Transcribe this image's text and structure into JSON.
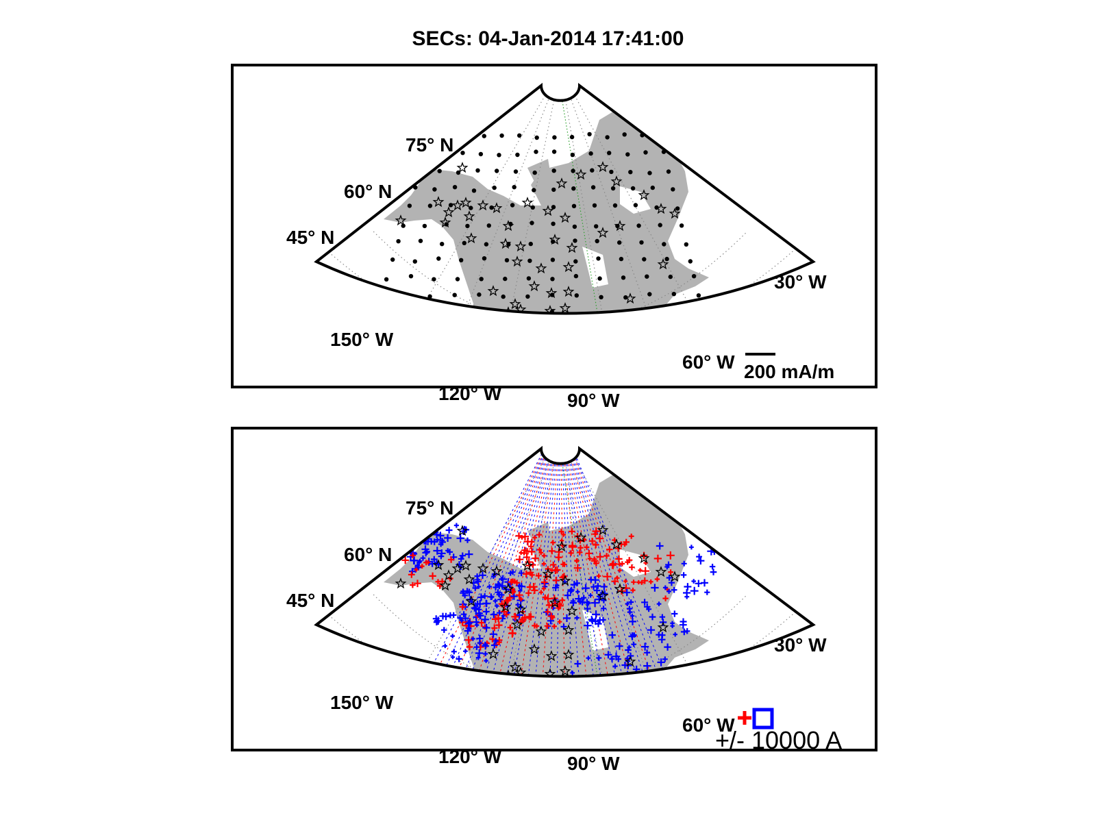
{
  "title": "SECs: 04-Jan-2014 17:41:00",
  "colors": {
    "land": "#b3b3b3",
    "positive": "#ff0000",
    "negative": "#0000ff",
    "central_meridian": "#2ca02c"
  },
  "panels": [
    {
      "id": "equivalent-currents",
      "lat_labels": [
        "75° N",
        "60° N",
        "45° N"
      ],
      "lon_labels": [
        "150° W",
        "120° W",
        "90° W",
        "60° W",
        "30° W"
      ],
      "scale_label": "200 mA/m"
    },
    {
      "id": "sec-amplitudes",
      "lat_labels": [
        "75° N",
        "60° N",
        "45° N"
      ],
      "lon_labels": [
        "150° W",
        "120° W",
        "90° W",
        "60° W",
        "30° W"
      ],
      "scale_label": "+/- 10000 A"
    }
  ]
}
